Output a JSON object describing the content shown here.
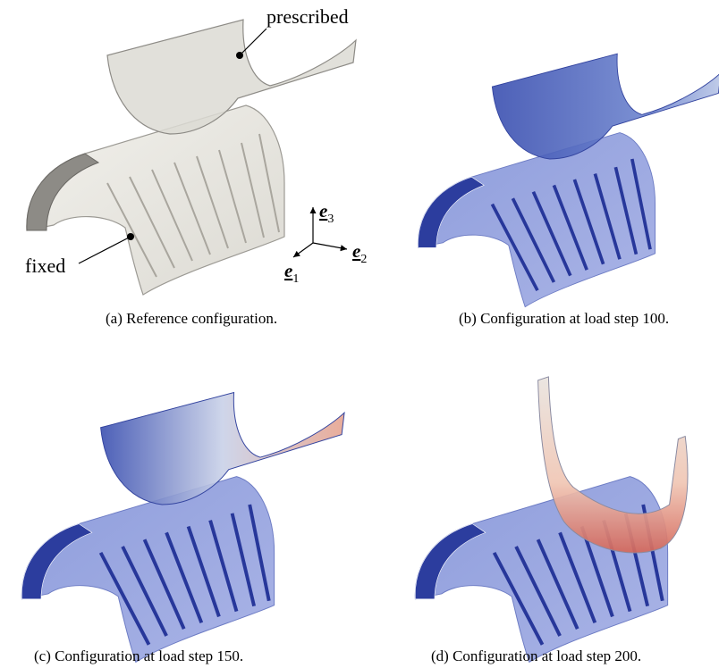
{
  "figures": [
    {
      "caption": "(a) Reference configuration."
    },
    {
      "caption": "(b) Configuration at load step 100."
    },
    {
      "caption": "(c) Configuration at load step 150."
    },
    {
      "caption": "(d) Configuration at load step 200."
    }
  ],
  "annotations": {
    "prescribed": "prescribed",
    "fixed": "fixed"
  },
  "axes": [
    {
      "symbol": "e",
      "subscript": "1"
    },
    {
      "symbol": "e",
      "subscript": "2"
    },
    {
      "symbol": "e",
      "subscript": "3"
    }
  ]
}
